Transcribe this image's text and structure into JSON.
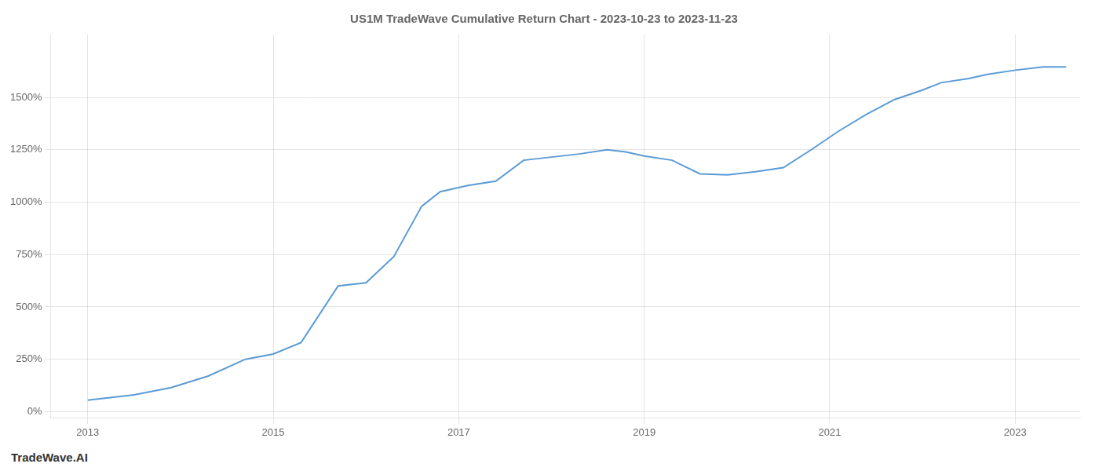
{
  "chart_data": {
    "type": "line",
    "title": "US1M TradeWave Cumulative Return Chart - 2023-10-23 to 2023-11-23",
    "annotations": [
      "TradeWave.AI"
    ],
    "x": [
      2013.0,
      2013.5,
      2013.9,
      2014.3,
      2014.7,
      2015.0,
      2015.3,
      2015.7,
      2016.0,
      2016.3,
      2016.6,
      2016.8,
      2017.1,
      2017.4,
      2017.7,
      2018.0,
      2018.3,
      2018.6,
      2018.8,
      2019.0,
      2019.3,
      2019.6,
      2019.9,
      2020.2,
      2020.5,
      2020.8,
      2021.1,
      2021.4,
      2021.7,
      2022.0,
      2022.2,
      2022.5,
      2022.7,
      2023.0,
      2023.3,
      2023.55
    ],
    "values": [
      55,
      80,
      115,
      170,
      250,
      275,
      330,
      600,
      615,
      740,
      980,
      1050,
      1080,
      1100,
      1200,
      1215,
      1230,
      1250,
      1240,
      1220,
      1200,
      1135,
      1130,
      1145,
      1165,
      1250,
      1340,
      1420,
      1490,
      1535,
      1570,
      1590,
      1610,
      1630,
      1645,
      1645
    ],
    "color": "#5b9bd5",
    "xlim": [
      2012.6,
      2023.7
    ],
    "ylim": [
      -30,
      1800
    ],
    "xticks": [
      2013,
      2015,
      2017,
      2019,
      2021,
      2023
    ],
    "yticks": [
      {
        "value": 0,
        "label": "0%"
      },
      {
        "value": 250,
        "label": "250%"
      },
      {
        "value": 500,
        "label": "500%"
      },
      {
        "value": 750,
        "label": "750%"
      },
      {
        "value": 1000,
        "label": "1000%"
      },
      {
        "value": 1250,
        "label": "1250%"
      },
      {
        "value": 1500,
        "label": "1500%"
      }
    ],
    "grid": true
  }
}
